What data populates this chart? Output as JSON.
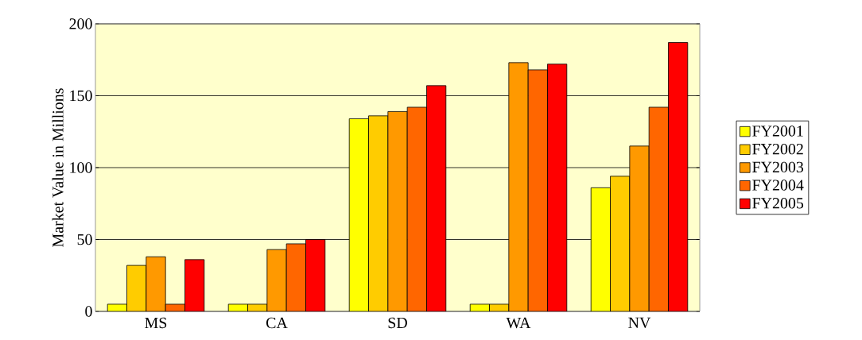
{
  "chart_data": {
    "type": "bar",
    "ylabel": "Market Value in Millions",
    "categories": [
      "MS",
      "CA",
      "SD",
      "WA",
      "NV"
    ],
    "series": [
      {
        "name": "FY2001",
        "color": "#ffff00",
        "values": [
          5,
          5,
          134,
          5,
          86
        ]
      },
      {
        "name": "FY2002",
        "color": "#ffcc00",
        "values": [
          32,
          5,
          136,
          5,
          94
        ]
      },
      {
        "name": "FY2003",
        "color": "#ff9900",
        "values": [
          38,
          43,
          139,
          173,
          115
        ]
      },
      {
        "name": "FY2004",
        "color": "#ff6600",
        "values": [
          5,
          47,
          142,
          168,
          142
        ]
      },
      {
        "name": "FY2005",
        "color": "#ff0000",
        "values": [
          36,
          50,
          157,
          172,
          187
        ]
      }
    ],
    "ylim": [
      0,
      200
    ],
    "yticks": [
      0,
      50,
      100,
      150,
      200
    ],
    "grid": "y",
    "legend": "right"
  }
}
